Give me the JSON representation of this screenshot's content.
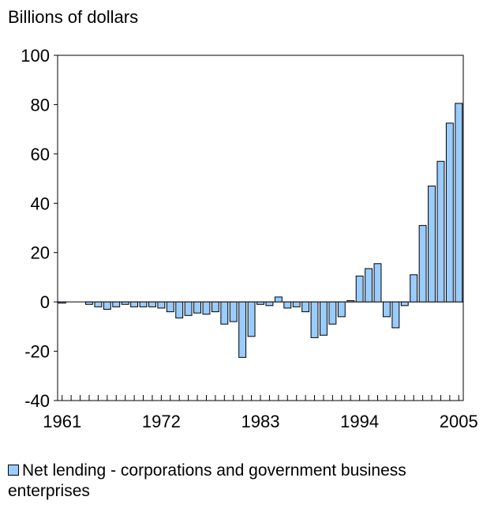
{
  "chart_data": {
    "type": "bar",
    "ylabel": "Billions of dollars",
    "ylim": [
      -40,
      100
    ],
    "yticks": [
      -40,
      -20,
      0,
      20,
      40,
      60,
      80,
      100
    ],
    "xtick_labels": [
      "1961",
      "1972",
      "1983",
      "1994",
      "2005"
    ],
    "grid": false,
    "legend_position": "bottom",
    "series": [
      {
        "name": "Net lending - corporations and government business enterprises",
        "color": "#99ccff",
        "x": [
          1961,
          1962,
          1963,
          1964,
          1965,
          1966,
          1967,
          1968,
          1969,
          1970,
          1971,
          1972,
          1973,
          1974,
          1975,
          1976,
          1977,
          1978,
          1979,
          1980,
          1981,
          1982,
          1983,
          1984,
          1985,
          1986,
          1987,
          1988,
          1989,
          1990,
          1991,
          1992,
          1993,
          1994,
          1995,
          1996,
          1997,
          1998,
          1999,
          2000,
          2001,
          2002,
          2003,
          2004,
          2005
        ],
        "values": [
          -0.5,
          0,
          0,
          -1,
          -2,
          -3,
          -2,
          -1,
          -2,
          -2,
          -2,
          -2.5,
          -4,
          -6.5,
          -5.5,
          -4.5,
          -5,
          -4,
          -9,
          -8,
          -22.5,
          -14,
          -1,
          -1.5,
          2,
          -2.5,
          -2,
          -4,
          -14.5,
          -13.5,
          -9,
          -6,
          0.5,
          10.5,
          13.5,
          15.5,
          -6,
          -10.5,
          -1.5,
          11,
          31,
          47,
          57,
          72.5,
          80.5
        ]
      }
    ]
  }
}
